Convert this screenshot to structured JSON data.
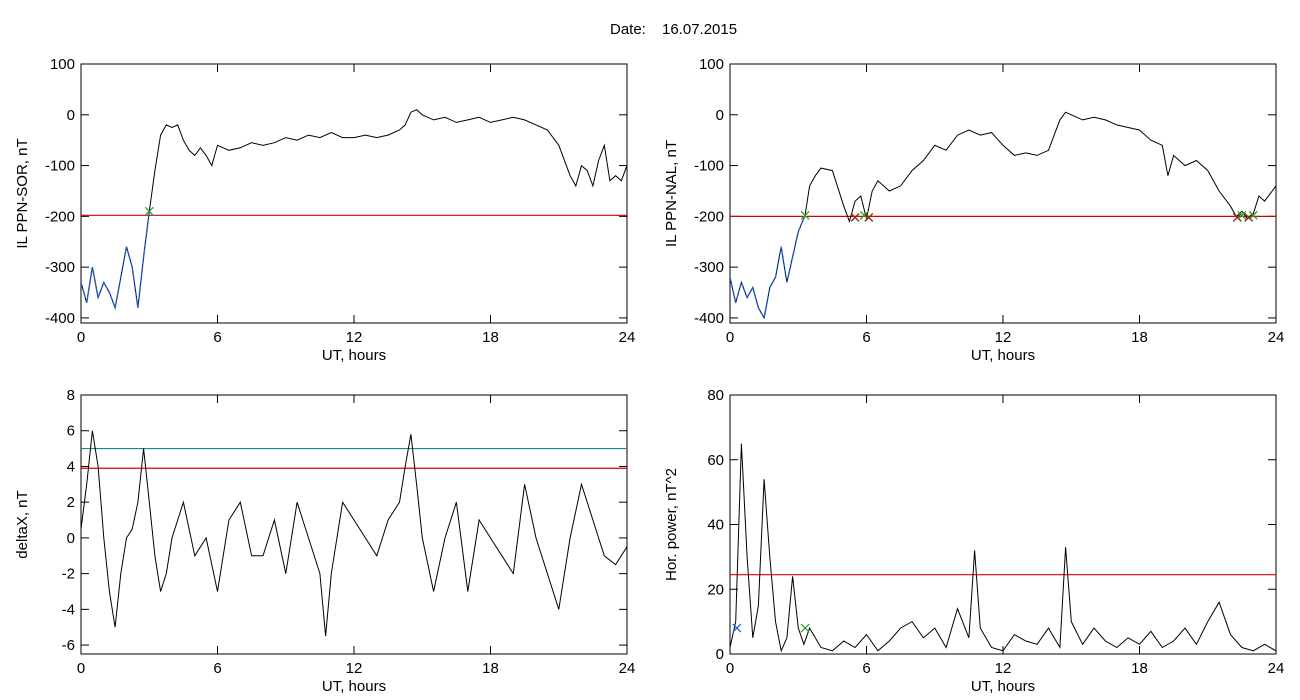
{
  "header": {
    "date_label": "Date:",
    "date_value": "16.07.2015"
  },
  "chart_data": [
    {
      "type": "line",
      "xlabel": "UT, hours",
      "ylabel": "IL PPN-SOR, nT",
      "xlim": [
        0,
        24
      ],
      "ylim": [
        -410,
        100
      ],
      "x_ticks": [
        0,
        6,
        12,
        18,
        24
      ],
      "y_ticks": [
        -400,
        -300,
        -200,
        -100,
        0,
        100
      ],
      "x_tick_labels": [
        "0",
        "6",
        "12",
        "18",
        "24"
      ],
      "y_tick_labels": [
        "-400",
        "-300",
        "-200",
        "-100",
        "0",
        "100"
      ],
      "grid": false,
      "hlines": [
        {
          "y": -198,
          "color": "#d40000"
        }
      ],
      "markers": [
        {
          "x": 3.0,
          "y": -190,
          "color": "#2ca02c",
          "symbol": "x"
        }
      ],
      "highlight_segments": [
        {
          "x_from": 0,
          "x_to": 3.0,
          "color": "#1f5fd6"
        }
      ],
      "series": [
        {
          "color": "#000000",
          "x": [
            0,
            0.25,
            0.5,
            0.75,
            1.0,
            1.25,
            1.5,
            1.75,
            2.0,
            2.25,
            2.5,
            2.75,
            3.0,
            3.25,
            3.5,
            3.75,
            4.0,
            4.25,
            4.5,
            4.75,
            5.0,
            5.25,
            5.5,
            5.75,
            6.0,
            6.5,
            7.0,
            7.5,
            8.0,
            8.5,
            9.0,
            9.5,
            10.0,
            10.5,
            11.0,
            11.5,
            12.0,
            12.5,
            13.0,
            13.5,
            14.0,
            14.25,
            14.5,
            14.75,
            15.0,
            15.5,
            16.0,
            16.5,
            17.0,
            17.5,
            18.0,
            18.5,
            19.0,
            19.5,
            20.0,
            20.5,
            21.0,
            21.5,
            21.75,
            22.0,
            22.25,
            22.5,
            22.75,
            23.0,
            23.25,
            23.5,
            23.75,
            24.0
          ],
          "y": [
            -330,
            -370,
            -300,
            -360,
            -330,
            -350,
            -380,
            -320,
            -260,
            -300,
            -380,
            -280,
            -190,
            -110,
            -40,
            -20,
            -25,
            -20,
            -50,
            -70,
            -80,
            -65,
            -80,
            -100,
            -60,
            -70,
            -65,
            -55,
            -60,
            -55,
            -45,
            -50,
            -40,
            -45,
            -35,
            -45,
            -45,
            -40,
            -45,
            -40,
            -30,
            -20,
            5,
            10,
            0,
            -10,
            -5,
            -15,
            -10,
            -5,
            -15,
            -10,
            -5,
            -10,
            -20,
            -30,
            -60,
            -120,
            -140,
            -100,
            -110,
            -140,
            -90,
            -60,
            -130,
            -120,
            -130,
            -100
          ]
        }
      ]
    },
    {
      "type": "line",
      "xlabel": "UT, hours",
      "ylabel": "IL PPN-NAL, nT",
      "xlim": [
        0,
        24
      ],
      "ylim": [
        -410,
        100
      ],
      "x_ticks": [
        0,
        6,
        12,
        18,
        24
      ],
      "y_ticks": [
        -400,
        -300,
        -200,
        -100,
        0,
        100
      ],
      "x_tick_labels": [
        "0",
        "6",
        "12",
        "18",
        "24"
      ],
      "y_tick_labels": [
        "-400",
        "-300",
        "-200",
        "-100",
        "0",
        "100"
      ],
      "grid": false,
      "hlines": [
        {
          "y": -200,
          "color": "#d40000"
        }
      ],
      "markers": [
        {
          "x": 3.3,
          "y": -198,
          "color": "#2ca02c",
          "symbol": "x"
        },
        {
          "x": 5.5,
          "y": -202,
          "color": "#8b2a1a",
          "symbol": "x"
        },
        {
          "x": 5.9,
          "y": -198,
          "color": "#2ca02c",
          "symbol": "x"
        },
        {
          "x": 6.1,
          "y": -202,
          "color": "#8b2a1a",
          "symbol": "x"
        },
        {
          "x": 22.3,
          "y": -202,
          "color": "#8b2a1a",
          "symbol": "x"
        },
        {
          "x": 22.5,
          "y": -198,
          "color": "#2ca02c",
          "symbol": "x"
        },
        {
          "x": 22.8,
          "y": -202,
          "color": "#8b2a1a",
          "symbol": "x"
        },
        {
          "x": 23.0,
          "y": -198,
          "color": "#2ca02c",
          "symbol": "x"
        }
      ],
      "highlight_segments": [
        {
          "x_from": 0,
          "x_to": 3.3,
          "color": "#1f5fd6"
        }
      ],
      "series": [
        {
          "color": "#000000",
          "x": [
            0,
            0.25,
            0.5,
            0.75,
            1.0,
            1.25,
            1.5,
            1.75,
            2.0,
            2.25,
            2.5,
            2.75,
            3.0,
            3.3,
            3.5,
            3.75,
            4.0,
            4.5,
            5.0,
            5.25,
            5.5,
            5.75,
            6.0,
            6.25,
            6.5,
            7.0,
            7.5,
            8.0,
            8.5,
            9.0,
            9.5,
            10.0,
            10.5,
            11.0,
            11.5,
            12.0,
            12.5,
            13.0,
            13.5,
            14.0,
            14.25,
            14.5,
            14.75,
            15.0,
            15.5,
            16.0,
            16.5,
            17.0,
            17.5,
            18.0,
            18.5,
            19.0,
            19.25,
            19.5,
            20.0,
            20.5,
            21.0,
            21.5,
            22.0,
            22.25,
            22.5,
            22.75,
            23.0,
            23.25,
            23.5,
            24.0
          ],
          "y": [
            -320,
            -370,
            -330,
            -360,
            -340,
            -380,
            -400,
            -340,
            -320,
            -260,
            -330,
            -280,
            -230,
            -198,
            -140,
            -120,
            -105,
            -110,
            -180,
            -210,
            -170,
            -160,
            -205,
            -150,
            -130,
            -150,
            -140,
            -110,
            -90,
            -60,
            -70,
            -40,
            -30,
            -40,
            -35,
            -60,
            -80,
            -75,
            -80,
            -70,
            -40,
            -10,
            5,
            0,
            -10,
            -5,
            -10,
            -20,
            -25,
            -30,
            -50,
            -60,
            -120,
            -80,
            -100,
            -90,
            -110,
            -150,
            -180,
            -200,
            -190,
            -205,
            -195,
            -160,
            -170,
            -140
          ]
        }
      ]
    },
    {
      "type": "line",
      "xlabel": "UT, hours",
      "ylabel": "deltaX, nT",
      "xlim": [
        0,
        24
      ],
      "ylim": [
        -6.5,
        8
      ],
      "x_ticks": [
        0,
        6,
        12,
        18,
        24
      ],
      "y_ticks": [
        -6,
        -4,
        -2,
        0,
        2,
        4,
        6,
        8
      ],
      "x_tick_labels": [
        "0",
        "6",
        "12",
        "18",
        "24"
      ],
      "y_tick_labels": [
        "-6",
        "-4",
        "-2",
        "0",
        "2",
        "4",
        "6",
        "8"
      ],
      "grid": false,
      "hlines": [
        {
          "y": 5.0,
          "color": "#1a8a8a"
        },
        {
          "y": 3.9,
          "color": "#d40000"
        }
      ],
      "markers": [],
      "highlight_segments": [],
      "series": [
        {
          "color": "#000000",
          "x": [
            0,
            0.25,
            0.5,
            0.75,
            1.0,
            1.25,
            1.5,
            1.75,
            2.0,
            2.25,
            2.5,
            2.75,
            3.0,
            3.25,
            3.5,
            3.75,
            4.0,
            4.5,
            5.0,
            5.5,
            6.0,
            6.5,
            7.0,
            7.5,
            8.0,
            8.5,
            9.0,
            9.5,
            10.0,
            10.5,
            10.75,
            11.0,
            11.5,
            12.0,
            12.5,
            13.0,
            13.5,
            14.0,
            14.25,
            14.5,
            14.75,
            15.0,
            15.5,
            16.0,
            16.5,
            17.0,
            17.5,
            18.0,
            18.5,
            19.0,
            19.5,
            20.0,
            20.5,
            21.0,
            21.5,
            22.0,
            22.5,
            23.0,
            23.5,
            24.0
          ],
          "y": [
            0.5,
            3,
            6,
            4,
            0,
            -3,
            -5,
            -2,
            0,
            0.5,
            2,
            5,
            2,
            -1,
            -3,
            -2,
            0,
            2,
            -1,
            0,
            -3,
            1,
            2,
            -1,
            -1,
            1,
            -2,
            2,
            0,
            -2,
            -5.5,
            -2,
            2,
            1,
            0,
            -1,
            1,
            2,
            4,
            5.8,
            3,
            0,
            -3,
            0,
            2,
            -3,
            1,
            0,
            -1,
            -2,
            3,
            0,
            -2,
            -4,
            0,
            3,
            1,
            -1,
            -1.5,
            -0.5
          ]
        }
      ]
    },
    {
      "type": "line",
      "xlabel": "UT, hours",
      "ylabel": "Hor. power, nT^2",
      "xlim": [
        0,
        24
      ],
      "ylim": [
        0,
        80
      ],
      "x_ticks": [
        0,
        6,
        12,
        18,
        24
      ],
      "y_ticks": [
        0,
        20,
        40,
        60,
        80
      ],
      "x_tick_labels": [
        "0",
        "6",
        "12",
        "18",
        "24"
      ],
      "y_tick_labels": [
        "0",
        "20",
        "40",
        "60",
        "80"
      ],
      "grid": false,
      "hlines": [
        {
          "y": 24.5,
          "color": "#d40000"
        }
      ],
      "markers": [
        {
          "x": 0.3,
          "y": 8,
          "color": "#1f5fd6",
          "symbol": "x"
        },
        {
          "x": 3.3,
          "y": 8,
          "color": "#2ca02c",
          "symbol": "x"
        }
      ],
      "highlight_segments": [],
      "series": [
        {
          "color": "#000000",
          "x": [
            0,
            0.25,
            0.5,
            0.75,
            1.0,
            1.25,
            1.5,
            1.75,
            2.0,
            2.25,
            2.5,
            2.75,
            3.0,
            3.25,
            3.5,
            4.0,
            4.5,
            5.0,
            5.5,
            6.0,
            6.5,
            7.0,
            7.5,
            8.0,
            8.5,
            9.0,
            9.5,
            10.0,
            10.5,
            10.75,
            11.0,
            11.5,
            12.0,
            12.5,
            13.0,
            13.5,
            14.0,
            14.5,
            14.75,
            15.0,
            15.5,
            16.0,
            16.5,
            17.0,
            17.5,
            18.0,
            18.5,
            19.0,
            19.5,
            20.0,
            20.5,
            21.0,
            21.5,
            22.0,
            22.5,
            23.0,
            23.5,
            24.0
          ],
          "y": [
            2,
            10,
            65,
            30,
            5,
            15,
            54,
            30,
            10,
            1,
            5,
            24,
            8,
            3,
            8,
            2,
            1,
            4,
            2,
            6,
            1,
            4,
            8,
            10,
            5,
            8,
            2,
            14,
            5,
            32,
            8,
            2,
            1,
            6,
            4,
            3,
            8,
            2,
            33,
            10,
            3,
            8,
            4,
            2,
            5,
            3,
            7,
            2,
            4,
            8,
            3,
            10,
            16,
            6,
            2,
            1,
            3,
            1
          ]
        }
      ]
    }
  ]
}
